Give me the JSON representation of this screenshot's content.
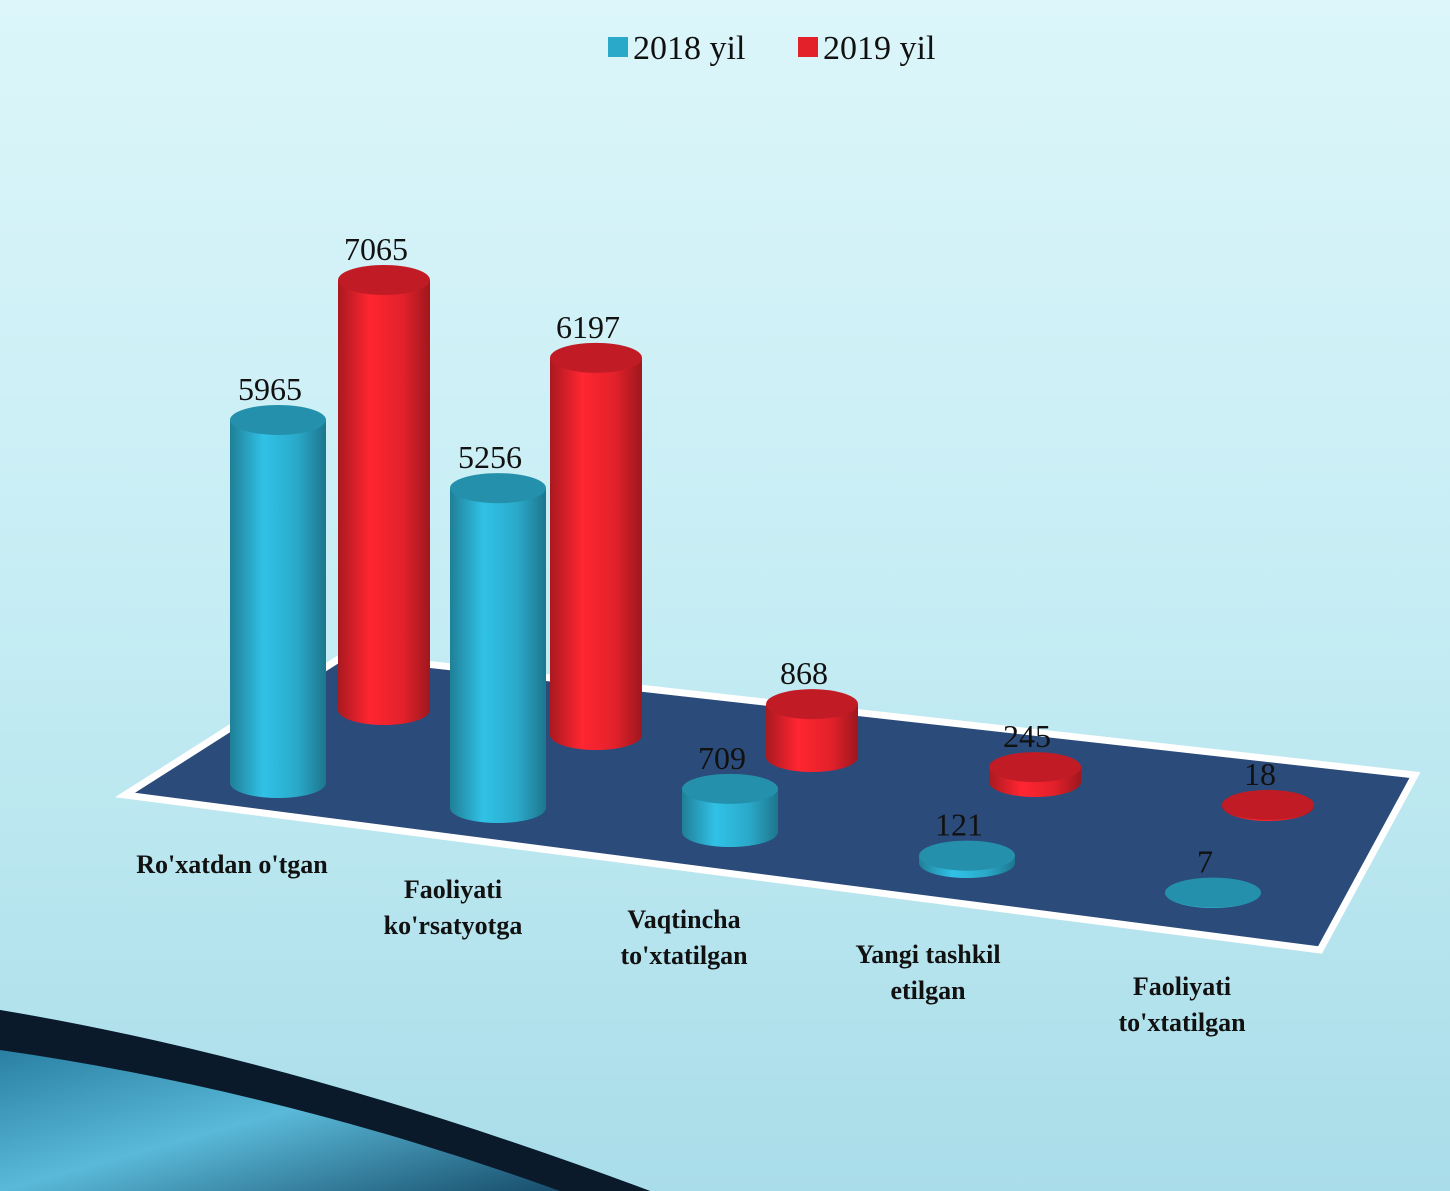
{
  "chart_data": {
    "type": "cylinder3d",
    "categories": [
      "Ro'xatdan o'tgan",
      "Faoliyati ko'rsatyotga",
      "Vaqtincha to'xtatilgan",
      "Yangi tashkil etilgan",
      "Faoliyati to'xtatilgan"
    ],
    "series": [
      {
        "name": "2018 yil",
        "color": "#2aa9c9",
        "values": [
          5965,
          5256,
          709,
          121,
          7
        ]
      },
      {
        "name": "2019 yil",
        "color": "#e3212b",
        "values": [
          7065,
          6197,
          868,
          245,
          18
        ]
      }
    ],
    "legend": "top"
  }
}
